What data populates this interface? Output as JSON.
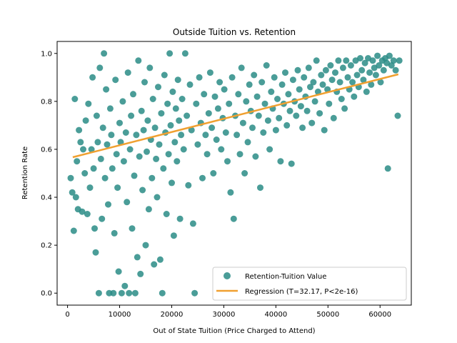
{
  "chart_data": {
    "type": "scatter",
    "title": "Outside Tuition vs. Retention",
    "xlabel": "Out of State Tuition (Price Charged to Attend)",
    "ylabel": "Retention Rate",
    "xlim": [
      -2000,
      66000
    ],
    "ylim": [
      -0.05,
      1.05
    ],
    "xticks": [
      0,
      10000,
      20000,
      30000,
      40000,
      50000,
      60000
    ],
    "xtick_labels": [
      "0",
      "10000",
      "20000",
      "30000",
      "40000",
      "50000",
      "60000"
    ],
    "yticks": [
      0.0,
      0.2,
      0.4,
      0.6,
      0.8,
      1.0
    ],
    "ytick_labels": [
      "0.0",
      "0.2",
      "0.4",
      "0.6",
      "0.8",
      "1.0"
    ],
    "grid": false,
    "legend_position": "lower-right",
    "series": [
      {
        "name": "Retention-Tuition Value",
        "kind": "scatter",
        "color": "#2a8c86",
        "points": [
          [
            600,
            0.48
          ],
          [
            900,
            0.42
          ],
          [
            1200,
            0.26
          ],
          [
            1400,
            0.81
          ],
          [
            1600,
            0.4
          ],
          [
            1800,
            0.55
          ],
          [
            2000,
            0.35
          ],
          [
            2200,
            0.68
          ],
          [
            2500,
            0.63
          ],
          [
            2800,
            0.34
          ],
          [
            3000,
            0.6
          ],
          [
            3300,
            0.5
          ],
          [
            3500,
            0.72
          ],
          [
            3800,
            0.33
          ],
          [
            4000,
            0.79
          ],
          [
            4300,
            0.44
          ],
          [
            4600,
            0.6
          ],
          [
            4800,
            0.9
          ],
          [
            5000,
            0.52
          ],
          [
            5200,
            0.27
          ],
          [
            5400,
            0.17
          ],
          [
            5600,
            0.74
          ],
          [
            5800,
            0.63
          ],
          [
            6000,
            0.0
          ],
          [
            6200,
            0.94
          ],
          [
            6400,
            0.56
          ],
          [
            6600,
            0.31
          ],
          [
            6800,
            0.69
          ],
          [
            7000,
            1.0
          ],
          [
            7200,
            0.48
          ],
          [
            7400,
            0.85
          ],
          [
            7600,
            0.62
          ],
          [
            7800,
            0.37
          ],
          [
            8000,
            0.0
          ],
          [
            8200,
            0.77
          ],
          [
            8400,
            0.66
          ],
          [
            8600,
            0.52
          ],
          [
            8800,
            0.0
          ],
          [
            9000,
            0.25
          ],
          [
            9200,
            0.89
          ],
          [
            9400,
            0.58
          ],
          [
            9600,
            0.44
          ],
          [
            9800,
            0.09
          ],
          [
            10000,
            0.71
          ],
          [
            10200,
            0.63
          ],
          [
            10400,
            0.0
          ],
          [
            10600,
            0.8
          ],
          [
            10800,
            0.55
          ],
          [
            11000,
            0.03
          ],
          [
            11200,
            0.67
          ],
          [
            11400,
            0.38
          ],
          [
            11600,
            0.92
          ],
          [
            11800,
            0.0
          ],
          [
            12000,
            0.6
          ],
          [
            12200,
            0.74
          ],
          [
            12400,
            0.27
          ],
          [
            12600,
            0.83
          ],
          [
            12800,
            0.49
          ],
          [
            13000,
            0.0
          ],
          [
            13200,
            0.66
          ],
          [
            13400,
            0.15
          ],
          [
            13600,
            0.97
          ],
          [
            13800,
            0.57
          ],
          [
            14000,
            0.08
          ],
          [
            14200,
            0.76
          ],
          [
            14400,
            0.43
          ],
          [
            14600,
            0.68
          ],
          [
            14800,
            0.88
          ],
          [
            15000,
            0.2
          ],
          [
            15200,
            0.59
          ],
          [
            15400,
            0.72
          ],
          [
            15600,
            0.35
          ],
          [
            15800,
            0.94
          ],
          [
            16000,
            0.64
          ],
          [
            16200,
            0.48
          ],
          [
            16400,
            0.81
          ],
          [
            16600,
            0.12
          ],
          [
            16800,
            0.69
          ],
          [
            17000,
            0.56
          ],
          [
            17200,
            0.4
          ],
          [
            17400,
            0.86
          ],
          [
            17600,
            0.62
          ],
          [
            17800,
            0.14
          ],
          [
            18000,
            0.75
          ],
          [
            18200,
            0.0
          ],
          [
            18400,
            0.52
          ],
          [
            18600,
            0.91
          ],
          [
            18800,
            0.67
          ],
          [
            19000,
            0.33
          ],
          [
            19200,
            0.79
          ],
          [
            19400,
            0.58
          ],
          [
            19600,
            1.0
          ],
          [
            19800,
            0.7
          ],
          [
            20000,
            0.46
          ],
          [
            20200,
            0.84
          ],
          [
            20400,
            0.24
          ],
          [
            20600,
            0.63
          ],
          [
            20800,
            0.77
          ],
          [
            21000,
            0.55
          ],
          [
            21200,
            0.89
          ],
          [
            21400,
            0.72
          ],
          [
            21600,
            0.31
          ],
          [
            21800,
            0.66
          ],
          [
            22000,
            0.81
          ],
          [
            22300,
            0.6
          ],
          [
            22600,
            1.0
          ],
          [
            22900,
            0.74
          ],
          [
            23200,
            0.45
          ],
          [
            23500,
            0.87
          ],
          [
            23800,
            0.68
          ],
          [
            24100,
            0.29
          ],
          [
            24400,
            0.0
          ],
          [
            24700,
            0.79
          ],
          [
            25000,
            0.62
          ],
          [
            25300,
            0.9
          ],
          [
            25600,
            0.71
          ],
          [
            25900,
            0.48
          ],
          [
            26200,
            0.83
          ],
          [
            26500,
            0.66
          ],
          [
            26800,
            0.58
          ],
          [
            27100,
            0.75
          ],
          [
            27400,
            0.92
          ],
          [
            27700,
            0.69
          ],
          [
            28000,
            0.5
          ],
          [
            28300,
            0.82
          ],
          [
            28600,
            0.64
          ],
          [
            28900,
            0.77
          ],
          [
            29200,
            0.88
          ],
          [
            29500,
            0.6
          ],
          [
            29800,
            0.73
          ],
          [
            30100,
            0.85
          ],
          [
            30400,
            0.67
          ],
          [
            30700,
            0.55
          ],
          [
            31000,
            0.79
          ],
          [
            31300,
            0.42
          ],
          [
            31600,
            0.9
          ],
          [
            31900,
            0.31
          ],
          [
            32200,
            0.74
          ],
          [
            32500,
            0.66
          ],
          [
            32800,
            0.83
          ],
          [
            33100,
            0.58
          ],
          [
            33400,
            0.94
          ],
          [
            33700,
            0.71
          ],
          [
            34000,
            0.5
          ],
          [
            34300,
            0.8
          ],
          [
            34600,
            0.63
          ],
          [
            34900,
            0.87
          ],
          [
            35200,
            0.76
          ],
          [
            35500,
            0.69
          ],
          [
            35800,
            0.91
          ],
          [
            36100,
            0.57
          ],
          [
            36400,
            0.82
          ],
          [
            36700,
            0.74
          ],
          [
            37000,
            0.44
          ],
          [
            37300,
            0.88
          ],
          [
            37600,
            0.67
          ],
          [
            37900,
            0.79
          ],
          [
            38200,
            0.95
          ],
          [
            38500,
            0.72
          ],
          [
            38800,
            0.6
          ],
          [
            39100,
            0.84
          ],
          [
            39400,
            0.77
          ],
          [
            39700,
            0.9
          ],
          [
            40000,
            0.68
          ],
          [
            40300,
            0.81
          ],
          [
            40600,
            0.73
          ],
          [
            40900,
            0.55
          ],
          [
            41200,
            0.87
          ],
          [
            41500,
            0.79
          ],
          [
            41800,
            0.92
          ],
          [
            42100,
            0.7
          ],
          [
            42400,
            0.83
          ],
          [
            42700,
            0.76
          ],
          [
            43000,
            0.54
          ],
          [
            43300,
            0.89
          ],
          [
            43600,
            0.8
          ],
          [
            43900,
            0.74
          ],
          [
            44200,
            0.93
          ],
          [
            44500,
            0.85
          ],
          [
            44800,
            0.78
          ],
          [
            45100,
            0.69
          ],
          [
            45400,
            0.9
          ],
          [
            45700,
            0.82
          ],
          [
            46000,
            0.76
          ],
          [
            46300,
            0.94
          ],
          [
            46600,
            0.86
          ],
          [
            46900,
            0.71
          ],
          [
            47200,
            0.88
          ],
          [
            47500,
            0.8
          ],
          [
            47800,
            0.97
          ],
          [
            48100,
            0.84
          ],
          [
            48400,
            0.75
          ],
          [
            48700,
            0.91
          ],
          [
            49000,
            0.87
          ],
          [
            49300,
            0.68
          ],
          [
            49600,
            0.93
          ],
          [
            49900,
            0.85
          ],
          [
            50200,
            0.79
          ],
          [
            50500,
            0.95
          ],
          [
            50800,
            0.89
          ],
          [
            51100,
            0.73
          ],
          [
            51400,
            0.92
          ],
          [
            51700,
            0.84
          ],
          [
            52000,
            0.97
          ],
          [
            52300,
            0.88
          ],
          [
            52600,
            0.81
          ],
          [
            52900,
            0.94
          ],
          [
            53200,
            0.77
          ],
          [
            53500,
            0.97
          ],
          [
            53800,
            0.9
          ],
          [
            54100,
            0.85
          ],
          [
            54400,
            0.95
          ],
          [
            54700,
            0.88
          ],
          [
            55000,
            0.82
          ],
          [
            55300,
            0.97
          ],
          [
            55600,
            0.91
          ],
          [
            55900,
            0.86
          ],
          [
            56200,
            0.98
          ],
          [
            56500,
            0.93
          ],
          [
            56800,
            0.89
          ],
          [
            57100,
            0.96
          ],
          [
            57400,
            0.84
          ],
          [
            57700,
            0.98
          ],
          [
            58000,
            0.92
          ],
          [
            58300,
            0.87
          ],
          [
            58600,
            0.97
          ],
          [
            58900,
            0.94
          ],
          [
            59200,
            0.91
          ],
          [
            59500,
            0.99
          ],
          [
            59800,
            0.95
          ],
          [
            60100,
            0.88
          ],
          [
            60400,
            0.97
          ],
          [
            60700,
            0.93
          ],
          [
            61000,
            0.98
          ],
          [
            61300,
            0.96
          ],
          [
            61500,
            0.52
          ],
          [
            61800,
            0.99
          ],
          [
            62200,
            0.95
          ],
          [
            62600,
            0.97
          ],
          [
            63000,
            0.93
          ],
          [
            63400,
            0.74
          ],
          [
            63700,
            0.97
          ]
        ]
      },
      {
        "name": "Regression (T=32.17, P<2e-16)",
        "kind": "line",
        "color": "#f0a030",
        "points": [
          [
            1000,
            0.567
          ],
          [
            63500,
            0.913
          ]
        ]
      }
    ]
  }
}
